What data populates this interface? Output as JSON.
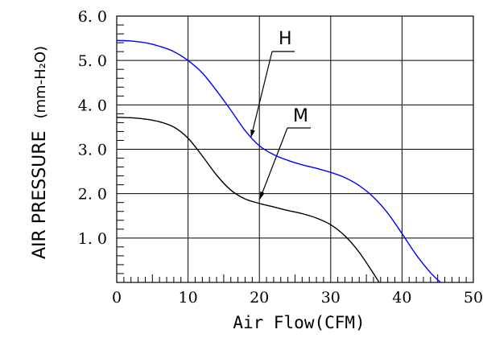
{
  "chart_data": {
    "type": "line",
    "xlabel": "Air Flow(CFM)",
    "ylabel": "AIR PRESSURE",
    "ylabel_unit": "(mm-H₂O)",
    "xlim": [
      0,
      50
    ],
    "ylim": [
      0,
      6
    ],
    "x_ticks": [
      "0",
      "10",
      "20",
      "30",
      "40",
      "50"
    ],
    "y_ticks": [
      "1.0",
      "2.0",
      "3.0",
      "4.0",
      "5.0",
      "6.0"
    ],
    "grid": true,
    "series": [
      {
        "name": "H",
        "color": "#0000ff",
        "x": [
          0,
          2,
          4,
          6,
          8,
          10,
          12,
          14,
          16,
          18,
          20,
          22,
          24,
          26,
          28,
          30,
          32,
          34,
          36,
          38,
          40,
          42,
          44,
          45.4
        ],
        "y": [
          5.45,
          5.44,
          5.4,
          5.32,
          5.2,
          5.0,
          4.72,
          4.32,
          3.88,
          3.42,
          3.08,
          2.88,
          2.75,
          2.65,
          2.57,
          2.48,
          2.36,
          2.18,
          1.92,
          1.56,
          1.1,
          0.62,
          0.22,
          0.0
        ]
      },
      {
        "name": "M",
        "color": "#000000",
        "x": [
          0,
          2,
          4,
          6,
          8,
          10,
          12,
          14,
          16,
          18,
          20,
          22,
          24,
          26,
          28,
          30,
          32,
          34,
          36,
          36.8
        ],
        "y": [
          3.72,
          3.71,
          3.68,
          3.62,
          3.5,
          3.25,
          2.85,
          2.42,
          2.08,
          1.88,
          1.78,
          1.7,
          1.62,
          1.55,
          1.45,
          1.3,
          1.05,
          0.68,
          0.2,
          0.0
        ]
      }
    ],
    "annotations": [
      "H",
      "M"
    ]
  }
}
